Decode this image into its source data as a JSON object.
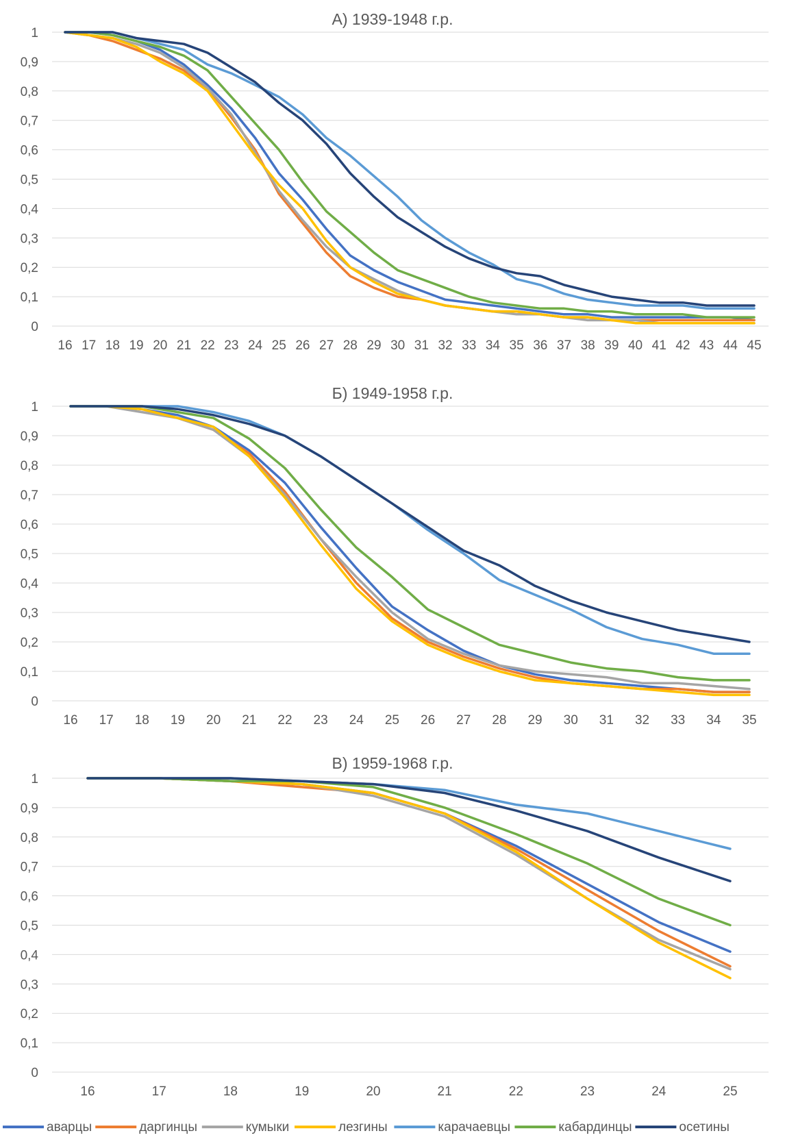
{
  "chart_data": [
    {
      "type": "line",
      "title": "А) 1939-1948 г.р.",
      "xlabel": "",
      "ylabel": "",
      "x": [
        16,
        17,
        18,
        19,
        20,
        21,
        22,
        23,
        24,
        25,
        26,
        27,
        28,
        29,
        30,
        31,
        32,
        33,
        34,
        35,
        36,
        37,
        38,
        39,
        40,
        41,
        42,
        43,
        44,
        45
      ],
      "ylim": [
        0,
        1
      ],
      "yticks": [
        "0",
        "0,1",
        "0,2",
        "0,3",
        "0,4",
        "0,5",
        "0,6",
        "0,7",
        "0,8",
        "0,9",
        "1"
      ],
      "grid": true,
      "series": [
        {
          "name": "аварцы",
          "values": [
            1,
            1,
            0.99,
            0.97,
            0.94,
            0.89,
            0.82,
            0.74,
            0.64,
            0.52,
            0.43,
            0.33,
            0.24,
            0.19,
            0.15,
            0.12,
            0.09,
            0.08,
            0.07,
            0.06,
            0.05,
            0.04,
            0.04,
            0.03,
            0.03,
            0.03,
            0.03,
            0.03,
            0.03,
            0.02
          ]
        },
        {
          "name": "даргинцы",
          "values": [
            1,
            0.99,
            0.97,
            0.94,
            0.91,
            0.87,
            0.81,
            0.71,
            0.6,
            0.45,
            0.35,
            0.25,
            0.17,
            0.13,
            0.1,
            0.09,
            0.07,
            0.06,
            0.05,
            0.05,
            0.04,
            0.03,
            0.03,
            0.02,
            0.02,
            0.02,
            0.02,
            0.02,
            0.02,
            0.02
          ]
        },
        {
          "name": "кумыки",
          "values": [
            1,
            0.99,
            0.98,
            0.96,
            0.93,
            0.88,
            0.81,
            0.72,
            0.59,
            0.46,
            0.36,
            0.27,
            0.2,
            0.16,
            0.12,
            0.09,
            0.07,
            0.06,
            0.05,
            0.04,
            0.04,
            0.03,
            0.02,
            0.02,
            0.02,
            0.01,
            0.01,
            0.01,
            0.01,
            0.01
          ]
        },
        {
          "name": "лезгины",
          "values": [
            1,
            0.99,
            0.98,
            0.95,
            0.9,
            0.86,
            0.8,
            0.69,
            0.58,
            0.48,
            0.4,
            0.29,
            0.2,
            0.15,
            0.11,
            0.09,
            0.07,
            0.06,
            0.05,
            0.05,
            0.04,
            0.03,
            0.03,
            0.02,
            0.01,
            0.01,
            0.01,
            0.01,
            0.01,
            0.01
          ]
        },
        {
          "name": "карачаевцы",
          "values": [
            1,
            1,
            1,
            0.98,
            0.96,
            0.94,
            0.89,
            0.86,
            0.82,
            0.78,
            0.72,
            0.64,
            0.58,
            0.51,
            0.44,
            0.36,
            0.3,
            0.25,
            0.21,
            0.16,
            0.14,
            0.11,
            0.09,
            0.08,
            0.07,
            0.07,
            0.07,
            0.06,
            0.06,
            0.06
          ]
        },
        {
          "name": "кабардинцы",
          "values": [
            1,
            1,
            0.99,
            0.97,
            0.95,
            0.92,
            0.87,
            0.78,
            0.69,
            0.6,
            0.49,
            0.39,
            0.32,
            0.25,
            0.19,
            0.16,
            0.13,
            0.1,
            0.08,
            0.07,
            0.06,
            0.06,
            0.05,
            0.05,
            0.04,
            0.04,
            0.04,
            0.03,
            0.03,
            0.03
          ]
        },
        {
          "name": "осетины",
          "values": [
            1,
            1,
            1,
            0.98,
            0.97,
            0.96,
            0.93,
            0.88,
            0.83,
            0.76,
            0.7,
            0.62,
            0.52,
            0.44,
            0.37,
            0.32,
            0.27,
            0.23,
            0.2,
            0.18,
            0.17,
            0.14,
            0.12,
            0.1,
            0.09,
            0.08,
            0.08,
            0.07,
            0.07,
            0.07
          ]
        }
      ]
    },
    {
      "type": "line",
      "title": "Б) 1949-1958 г.р.",
      "xlabel": "",
      "ylabel": "",
      "x": [
        16,
        17,
        18,
        19,
        20,
        21,
        22,
        23,
        24,
        25,
        26,
        27,
        28,
        29,
        30,
        31,
        32,
        33,
        34,
        35
      ],
      "ylim": [
        0,
        1
      ],
      "yticks": [
        "0",
        "0,1",
        "0,2",
        "0,3",
        "0,4",
        "0,5",
        "0,6",
        "0,7",
        "0,8",
        "0,9",
        "1"
      ],
      "grid": true,
      "series": [
        {
          "name": "аварцы",
          "values": [
            1,
            1,
            0.99,
            0.97,
            0.93,
            0.85,
            0.74,
            0.59,
            0.45,
            0.32,
            0.24,
            0.17,
            0.12,
            0.09,
            0.07,
            0.06,
            0.05,
            0.04,
            0.03,
            0.03
          ]
        },
        {
          "name": "даргинцы",
          "values": [
            1,
            1,
            0.99,
            0.96,
            0.92,
            0.84,
            0.71,
            0.55,
            0.4,
            0.28,
            0.2,
            0.15,
            0.11,
            0.08,
            0.06,
            0.05,
            0.04,
            0.04,
            0.03,
            0.03
          ]
        },
        {
          "name": "кумыки",
          "values": [
            1,
            1,
            0.98,
            0.96,
            0.92,
            0.83,
            0.7,
            0.55,
            0.42,
            0.3,
            0.21,
            0.16,
            0.12,
            0.1,
            0.09,
            0.08,
            0.06,
            0.06,
            0.05,
            0.04
          ]
        },
        {
          "name": "лезгины",
          "values": [
            1,
            1,
            0.99,
            0.96,
            0.93,
            0.83,
            0.69,
            0.53,
            0.38,
            0.27,
            0.19,
            0.14,
            0.1,
            0.07,
            0.06,
            0.05,
            0.04,
            0.03,
            0.02,
            0.02
          ]
        },
        {
          "name": "карачаевцы",
          "values": [
            1,
            1,
            1,
            1,
            0.98,
            0.95,
            0.9,
            0.83,
            0.75,
            0.67,
            0.58,
            0.5,
            0.41,
            0.36,
            0.31,
            0.25,
            0.21,
            0.19,
            0.16,
            0.16
          ]
        },
        {
          "name": "кабардинцы",
          "values": [
            1,
            1,
            1,
            0.98,
            0.96,
            0.89,
            0.79,
            0.65,
            0.52,
            0.42,
            0.31,
            0.25,
            0.19,
            0.16,
            0.13,
            0.11,
            0.1,
            0.08,
            0.07,
            0.07
          ]
        },
        {
          "name": "осетины",
          "values": [
            1,
            1,
            1,
            0.99,
            0.97,
            0.94,
            0.9,
            0.83,
            0.75,
            0.67,
            0.59,
            0.51,
            0.46,
            0.39,
            0.34,
            0.3,
            0.27,
            0.24,
            0.22,
            0.2
          ]
        }
      ]
    },
    {
      "type": "line",
      "title": "В) 1959-1968 г.р.",
      "xlabel": "",
      "ylabel": "",
      "x": [
        16,
        17,
        18,
        19,
        20,
        21,
        22,
        23,
        24,
        25
      ],
      "ylim": [
        0,
        1
      ],
      "yticks": [
        "0",
        "0,1",
        "0,2",
        "0,3",
        "0,4",
        "0,5",
        "0,6",
        "0,7",
        "0,8",
        "0,9",
        "1"
      ],
      "grid": true,
      "series": [
        {
          "name": "аварцы",
          "values": [
            1,
            1,
            0.99,
            0.98,
            0.95,
            0.88,
            0.77,
            0.64,
            0.51,
            0.41
          ]
        },
        {
          "name": "даргинцы",
          "values": [
            1,
            1,
            0.99,
            0.97,
            0.95,
            0.88,
            0.76,
            0.62,
            0.48,
            0.36
          ]
        },
        {
          "name": "кумыки",
          "values": [
            1,
            1,
            0.99,
            0.98,
            0.94,
            0.87,
            0.74,
            0.59,
            0.45,
            0.35
          ]
        },
        {
          "name": "лезгины",
          "values": [
            1,
            1,
            0.99,
            0.98,
            0.95,
            0.88,
            0.75,
            0.59,
            0.44,
            0.32
          ]
        },
        {
          "name": "карачаевцы",
          "values": [
            1,
            1,
            1,
            0.99,
            0.98,
            0.96,
            0.91,
            0.88,
            0.82,
            0.76
          ]
        },
        {
          "name": "кабардинцы",
          "values": [
            1,
            1,
            0.99,
            0.99,
            0.97,
            0.9,
            0.81,
            0.71,
            0.59,
            0.5
          ]
        },
        {
          "name": "осетины",
          "values": [
            1,
            1,
            1,
            0.99,
            0.98,
            0.95,
            0.89,
            0.82,
            0.73,
            0.65
          ]
        }
      ]
    }
  ],
  "legend": {
    "placement": "bottom",
    "items": [
      {
        "name": "аварцы",
        "color": "#4472C4"
      },
      {
        "name": "даргинцы",
        "color": "#ED7D31"
      },
      {
        "name": "кумыки",
        "color": "#A5A5A5"
      },
      {
        "name": "лезгины",
        "color": "#FFC000"
      },
      {
        "name": "карачаевцы",
        "color": "#5B9BD5"
      },
      {
        "name": "кабардинцы",
        "color": "#70AD47"
      },
      {
        "name": "осетины",
        "color": "#264478"
      }
    ]
  }
}
